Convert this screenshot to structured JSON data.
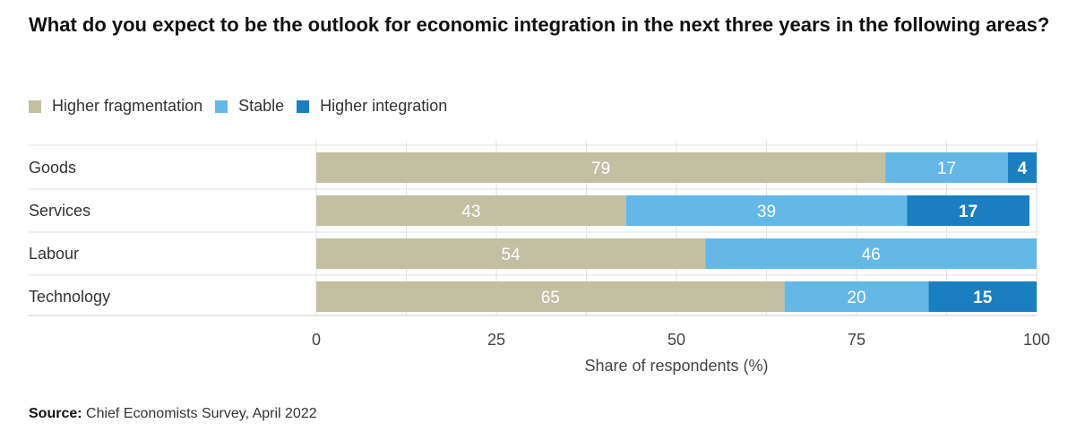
{
  "title": "What do you expect to be the outlook for economic integration in the next three years in the following areas?",
  "source": {
    "label": "Source:",
    "text": " Chief Economists Survey, April 2022"
  },
  "chart_data": {
    "type": "bar",
    "orientation": "horizontal",
    "stacked": true,
    "title": "What do you expect to be the outlook for economic integration in the next three years in the following areas?",
    "xlabel": "Share of respondents (%)",
    "ylabel": "",
    "xlim": [
      0,
      100
    ],
    "xticks": [
      0,
      25,
      50,
      75,
      100
    ],
    "grid": true,
    "legend": "top-left",
    "categories": [
      "Goods",
      "Services",
      "Labour",
      "Technology"
    ],
    "series": [
      {
        "name": "Higher fragmentation",
        "color": "#c2bfa3",
        "values": [
          79,
          43,
          54,
          65
        ]
      },
      {
        "name": "Stable",
        "color": "#63b8e7",
        "values": [
          17,
          39,
          46,
          20
        ]
      },
      {
        "name": "Higher integration",
        "color": "#1a7fc1",
        "values": [
          4,
          17,
          0,
          15
        ]
      }
    ]
  }
}
